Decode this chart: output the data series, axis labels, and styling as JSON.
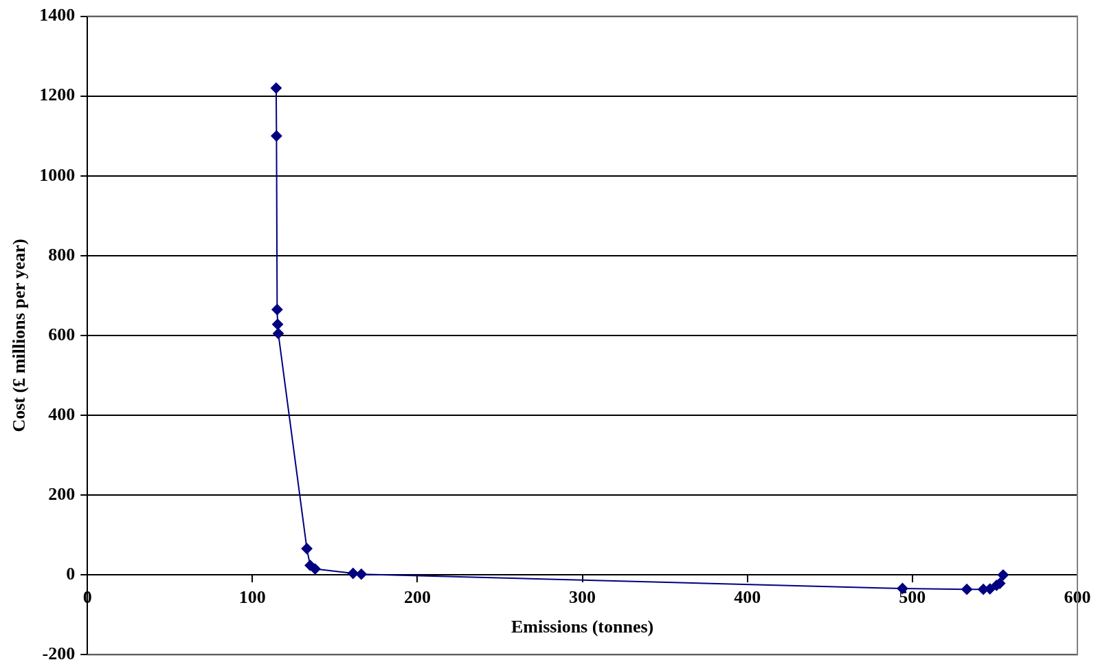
{
  "chart_data": {
    "type": "line",
    "xlabel": "Emissions (tonnes)",
    "ylabel": "Cost (£ millions per year)",
    "xlim": [
      0,
      600
    ],
    "xticks": [
      0,
      100,
      200,
      300,
      400,
      500,
      600
    ],
    "ylim": [
      -200,
      1400
    ],
    "yticks": [
      -200,
      0,
      200,
      400,
      600,
      800,
      1000,
      1200,
      1400
    ],
    "grid": "y",
    "marker": "diamond",
    "line_style": "solid",
    "legend": false,
    "series": [
      {
        "color": "#000080",
        "x": [
          114.4,
          114.6,
          115,
          115.3,
          115.7,
          133,
          135,
          138,
          161,
          166,
          494,
          533,
          543,
          547,
          551,
          553,
          555
        ],
        "values": [
          1220,
          1100,
          665,
          628,
          605,
          66,
          24,
          15,
          4,
          2,
          -34,
          -36,
          -36,
          -35,
          -26,
          -21,
          0
        ]
      }
    ]
  }
}
